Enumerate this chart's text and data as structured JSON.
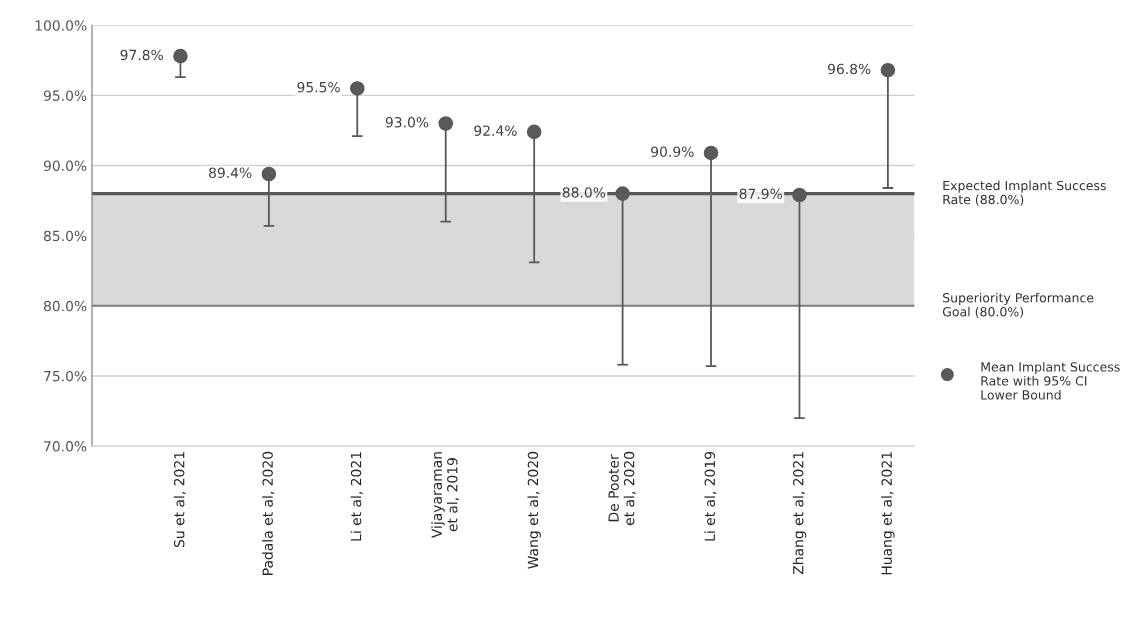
{
  "chart_data": {
    "type": "scatter",
    "categories": [
      "Su et al, 2021",
      "Padala et al, 2020",
      "Li et al, 2021",
      "Vijayaraman\net al, 2019",
      "Wang et al, 2020",
      "De Pooter\net al, 2020",
      "Li et al, 2019",
      "Zhang et al, 2021",
      "Huang et al, 2021"
    ],
    "series": [
      {
        "name": "Mean Implant Success Rate with 95% CI Lower Bound",
        "color": "#595959",
        "values": [
          97.8,
          89.4,
          95.5,
          93.0,
          92.4,
          88.0,
          90.9,
          87.9,
          96.8
        ],
        "errors": [
          [
            96.3,
            97.8
          ],
          [
            85.7,
            89.4
          ],
          [
            92.1,
            95.5
          ],
          [
            86.0,
            93.0
          ],
          [
            83.1,
            92.4
          ],
          [
            75.8,
            88.0
          ],
          [
            75.7,
            90.9
          ],
          [
            72.0,
            87.9
          ],
          [
            88.4,
            96.8
          ]
        ],
        "value_labels": [
          "97.8%",
          "89.4%",
          "95.5%",
          "93.0%",
          "92.4%",
          "88.0%",
          "90.9%",
          "87.9%",
          "96.8%"
        ]
      }
    ],
    "ylim": [
      70,
      100
    ],
    "yticks": [
      {
        "value": 70,
        "label": "70.0%"
      },
      {
        "value": 75,
        "label": "75.0%"
      },
      {
        "value": 80,
        "label": "80.0%"
      },
      {
        "value": 85,
        "label": "85.0%"
      },
      {
        "value": 90,
        "label": "90.0%"
      },
      {
        "value": 95,
        "label": "95.0%"
      },
      {
        "value": 100,
        "label": "100.0%"
      }
    ],
    "ref_lines": [
      {
        "axis": "y",
        "value": 88,
        "label": "Expected Implant Success Rate (88.0%)",
        "color": "#595959"
      },
      {
        "axis": "y",
        "value": 80,
        "label": "Superiority Performance Goal (80.0%)",
        "color": "#7f7f7f"
      }
    ],
    "bands": [
      {
        "axis": "y",
        "from": 80,
        "to": 88,
        "color": "#d9d9d9"
      }
    ],
    "grid": "y",
    "legend": "right",
    "marker": "circle"
  }
}
